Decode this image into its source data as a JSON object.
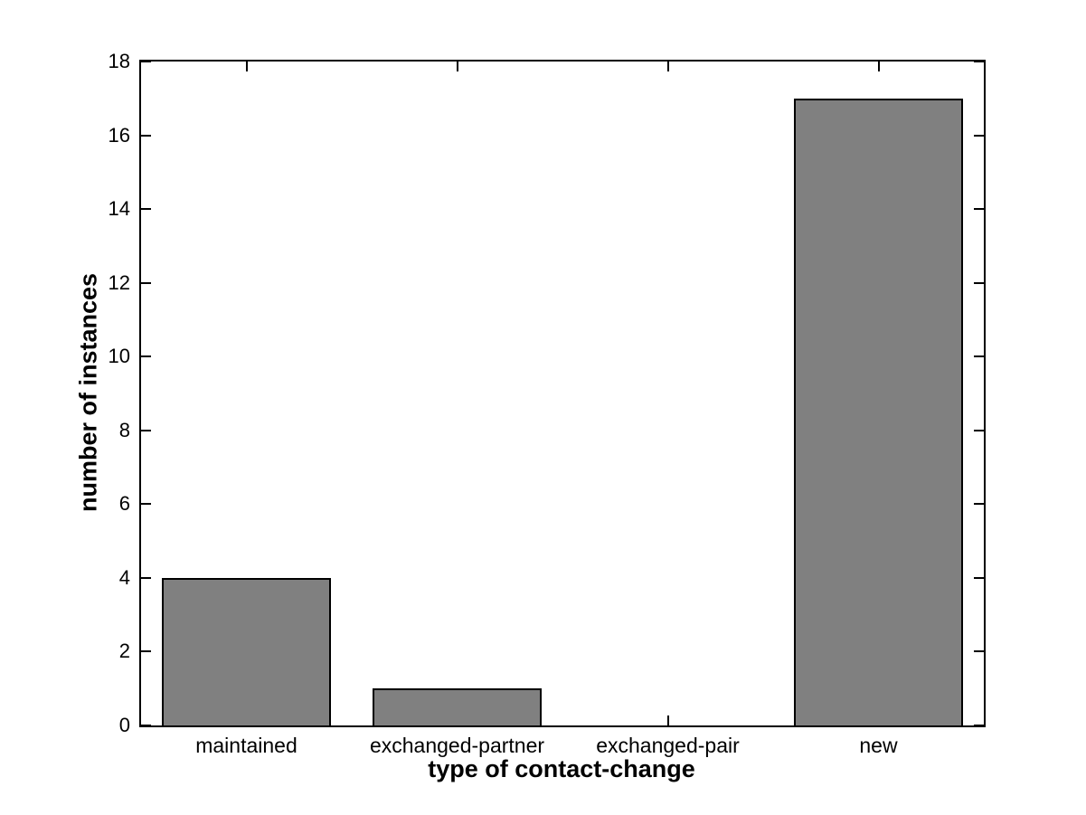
{
  "chart_data": {
    "type": "bar",
    "categories": [
      "maintained",
      "exchanged-partner",
      "exchanged-pair",
      "new"
    ],
    "values": [
      4,
      1,
      0,
      17
    ],
    "xlabel": "type of contact-change",
    "ylabel": "number of instances",
    "ylim": [
      0,
      18
    ],
    "yticks": [
      0,
      2,
      4,
      6,
      8,
      10,
      12,
      14,
      16,
      18
    ],
    "bar_width_fraction": 0.8,
    "bar_color": "#808080",
    "bar_edge_color": "#000000",
    "axis_color": "#000000",
    "background_color": "#ffffff",
    "grid": false,
    "legend": "none",
    "box": "on",
    "tick_direction": "in"
  }
}
